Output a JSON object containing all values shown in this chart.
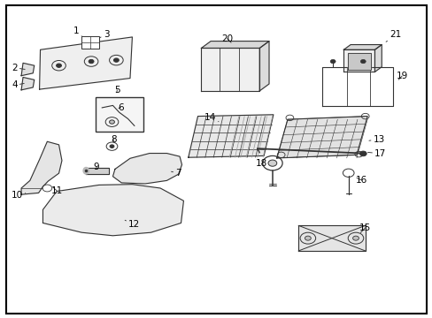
{
  "background_color": "#ffffff",
  "border_color": "#000000",
  "line_color": "#333333",
  "text_color": "#000000",
  "label_fontsize": 7.5,
  "labels": {
    "1": [
      0.175,
      0.905,
      0.195,
      0.878
    ],
    "2": [
      0.032,
      0.788,
      0.062,
      0.782
    ],
    "3": [
      0.245,
      0.893,
      0.213,
      0.872
    ],
    "4": [
      0.032,
      0.733,
      0.06,
      0.74
    ],
    "5": [
      0.27,
      0.718,
      0.268,
      0.702
    ],
    "6": [
      0.278,
      0.663,
      0.268,
      0.657
    ],
    "7": [
      0.412,
      0.455,
      0.39,
      0.462
    ],
    "8": [
      0.262,
      0.562,
      0.26,
      0.549
    ],
    "9": [
      0.222,
      0.474,
      0.224,
      0.468
    ],
    "10": [
      0.038,
      0.385,
      0.063,
      0.395
    ],
    "11": [
      0.13,
      0.4,
      0.118,
      0.415
    ],
    "12": [
      0.31,
      0.293,
      0.283,
      0.31
    ],
    "13": [
      0.877,
      0.562,
      0.848,
      0.557
    ],
    "14": [
      0.485,
      0.63,
      0.505,
      0.618
    ],
    "15": [
      0.845,
      0.283,
      0.83,
      0.262
    ],
    "16": [
      0.837,
      0.433,
      0.82,
      0.443
    ],
    "17": [
      0.88,
      0.517,
      0.845,
      0.522
    ],
    "18": [
      0.605,
      0.486,
      0.614,
      0.487
    ],
    "19": [
      0.93,
      0.762,
      0.918,
      0.745
    ],
    "20": [
      0.525,
      0.88,
      0.538,
      0.862
    ],
    "21": [
      0.915,
      0.892,
      0.893,
      0.87
    ]
  }
}
